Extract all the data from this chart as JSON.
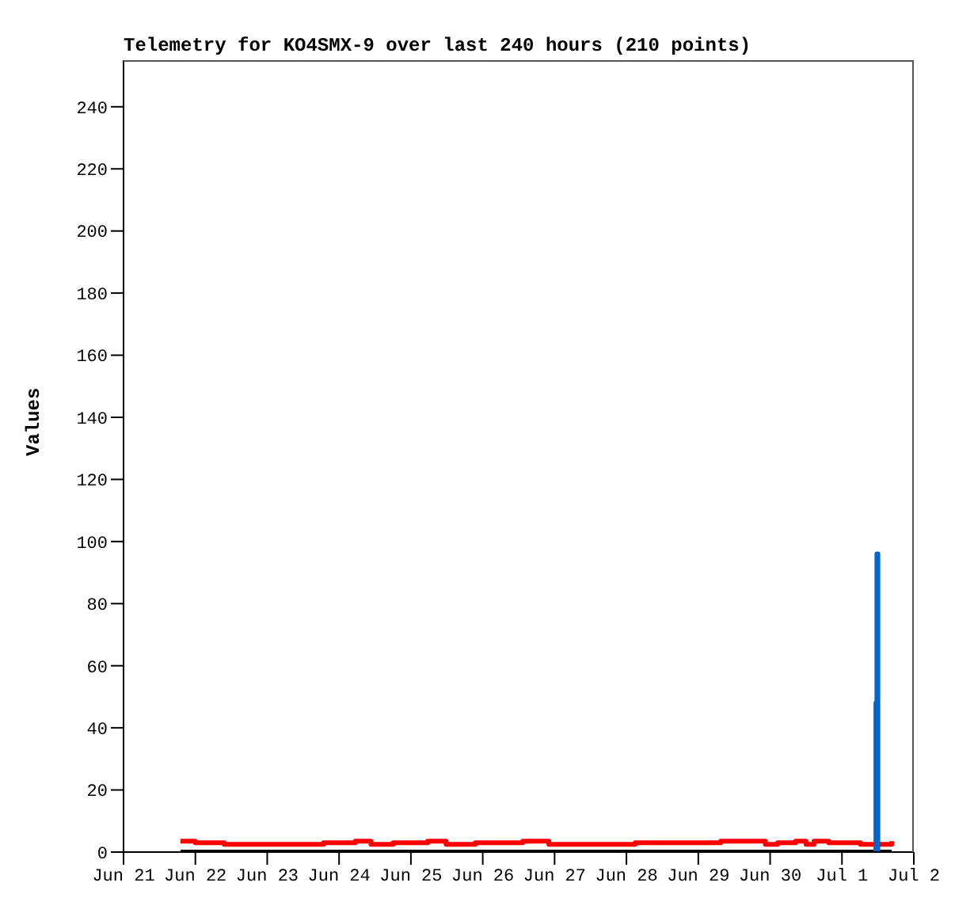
{
  "chart_data": {
    "type": "line",
    "title": "Telemetry for KO4SMX-9 over last 240 hours (210 points)",
    "ylabel": "Values",
    "xlim": [
      "--06-21",
      "--07-02"
    ],
    "xticks": [
      {
        "value": "--06-21",
        "label": "Jun 21"
      },
      {
        "value": "--06-22",
        "label": "Jun 22"
      },
      {
        "value": "--06-23",
        "label": "Jun 23"
      },
      {
        "value": "--06-24",
        "label": "Jun 24"
      },
      {
        "value": "--06-25",
        "label": "Jun 25"
      },
      {
        "value": "--06-26",
        "label": "Jun 26"
      },
      {
        "value": "--06-27",
        "label": "Jun 27"
      },
      {
        "value": "--06-28",
        "label": "Jun 28"
      },
      {
        "value": "--06-29",
        "label": "Jun 29"
      },
      {
        "value": "--06-30",
        "label": "Jun 30"
      },
      {
        "value": "--07-01",
        "label": "Jul 1"
      },
      {
        "value": "--07-02",
        "label": "Jul 2"
      }
    ],
    "ylim": [
      0,
      255
    ],
    "yticks": [
      0,
      20,
      40,
      60,
      80,
      100,
      120,
      140,
      160,
      180,
      200,
      220,
      240
    ],
    "marker": "none",
    "series": [
      {
        "color": "#000000",
        "x": [
          "--06-21T19:00",
          "--07-01T16:35"
        ],
        "values": [
          0,
          0
        ]
      },
      {
        "type": "step",
        "color": "#ff0000",
        "x": [
          "--06-21T19:00",
          "--06-22T00:00",
          "--06-22T09:40",
          "--06-23T18:50",
          "--06-24T05:25",
          "--06-24T10:40",
          "--06-24T18:05",
          "--06-25T05:35",
          "--06-25T11:45",
          "--06-25T21:30",
          "--06-26T13:20",
          "--06-26T22:05",
          "--06-28T02:55",
          "--06-29T07:30",
          "--06-29T22:25",
          "--06-30T02:30",
          "--06-30T08:30",
          "--06-30T12:00",
          "--06-30T14:40",
          "--06-30T19:35",
          "--07-01T06:10",
          "--07-01T16:35"
        ],
        "values": [
          3.5,
          3,
          2.5,
          3,
          3.5,
          2.5,
          3,
          3.5,
          2.5,
          3,
          3.5,
          2.5,
          3,
          3.5,
          2.5,
          3,
          3.5,
          2.5,
          3.5,
          3,
          2.5,
          3.5
        ]
      },
      {
        "type": "step",
        "color": "#0066cc",
        "x": [
          "--07-01T11:00",
          "--07-01T11:20",
          "--07-01T11:40",
          "--07-01T12:00"
        ],
        "values": [
          0,
          48,
          96,
          0
        ]
      }
    ]
  }
}
